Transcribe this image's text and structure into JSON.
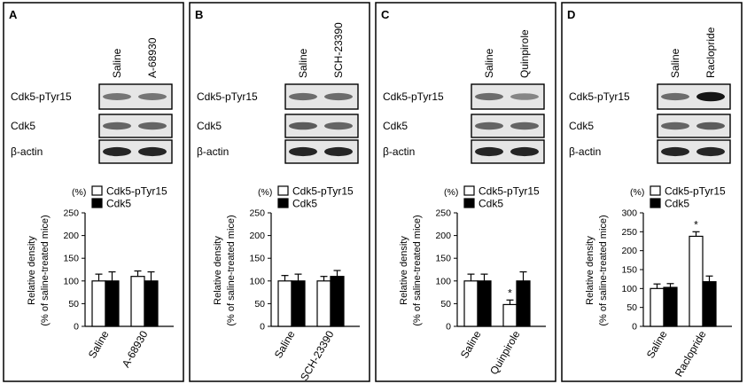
{
  "common": {
    "percent_label": "(%)",
    "ylabel_line1": "Relative density",
    "ylabel_line2": "(% of saline-treated mice)",
    "blot_rows": [
      "Cdk5-pTyr15",
      "Cdk5",
      "β-actin"
    ],
    "legend": [
      "Cdk5-pTyr15",
      "Cdk5"
    ],
    "colors": {
      "open_bar": "#ffffff",
      "filled_bar": "#000000",
      "panel_border": "#000000"
    }
  },
  "chart_data": [
    {
      "panel": "A",
      "type": "bar",
      "categories": [
        "Saline",
        "A-68930"
      ],
      "lane_labels": [
        "Saline",
        "A-68930"
      ],
      "series": [
        {
          "name": "Cdk5-pTyr15",
          "values": [
            100,
            110
          ],
          "errors": [
            15,
            12
          ]
        },
        {
          "name": "Cdk5",
          "values": [
            100,
            100
          ],
          "errors": [
            20,
            20
          ]
        }
      ],
      "ylim": [
        0,
        250
      ],
      "yticks": [
        "0",
        "50",
        "100",
        "150",
        "200",
        "250"
      ],
      "significance": [
        null,
        null
      ]
    },
    {
      "panel": "B",
      "type": "bar",
      "categories": [
        "Saline",
        "SCH-23390"
      ],
      "lane_labels": [
        "Saline",
        "SCH-23390"
      ],
      "series": [
        {
          "name": "Cdk5-pTyr15",
          "values": [
            100,
            100
          ],
          "errors": [
            12,
            10
          ]
        },
        {
          "name": "Cdk5",
          "values": [
            100,
            110
          ],
          "errors": [
            15,
            13
          ]
        }
      ],
      "ylim": [
        0,
        250
      ],
      "yticks": [
        "0",
        "50",
        "100",
        "150",
        "200",
        "250"
      ],
      "significance": [
        null,
        null
      ]
    },
    {
      "panel": "C",
      "type": "bar",
      "categories": [
        "Saline",
        "Quinpirole"
      ],
      "lane_labels": [
        "Saline",
        "Quinpirole"
      ],
      "series": [
        {
          "name": "Cdk5-pTyr15",
          "values": [
            100,
            48
          ],
          "errors": [
            15,
            10
          ]
        },
        {
          "name": "Cdk5",
          "values": [
            100,
            100
          ],
          "errors": [
            15,
            20
          ]
        }
      ],
      "ylim": [
        0,
        250
      ],
      "yticks": [
        "0",
        "50",
        "100",
        "150",
        "200",
        "250"
      ],
      "significance": [
        null,
        "*"
      ]
    },
    {
      "panel": "D",
      "type": "bar",
      "categories": [
        "Saline",
        "Raclopride"
      ],
      "lane_labels": [
        "Saline",
        "Raclopride"
      ],
      "series": [
        {
          "name": "Cdk5-pTyr15",
          "values": [
            100,
            238
          ],
          "errors": [
            12,
            12
          ]
        },
        {
          "name": "Cdk5",
          "values": [
            103,
            118
          ],
          "errors": [
            10,
            15
          ]
        }
      ],
      "ylim": [
        0,
        300
      ],
      "yticks": [
        "0",
        "50",
        "100",
        "150",
        "200",
        "250",
        "300"
      ],
      "significance": [
        null,
        "*"
      ]
    }
  ],
  "blot_bands": [
    {
      "panel": "A",
      "rows": [
        [
          0.35,
          0.35
        ],
        [
          0.45,
          0.45
        ],
        [
          0.85,
          0.85
        ]
      ]
    },
    {
      "panel": "B",
      "rows": [
        [
          0.4,
          0.4
        ],
        [
          0.5,
          0.45
        ],
        [
          0.85,
          0.85
        ]
      ]
    },
    {
      "panel": "C",
      "rows": [
        [
          0.4,
          0.25
        ],
        [
          0.45,
          0.45
        ],
        [
          0.85,
          0.85
        ]
      ]
    },
    {
      "panel": "D",
      "rows": [
        [
          0.4,
          0.95
        ],
        [
          0.45,
          0.5
        ],
        [
          0.85,
          0.85
        ]
      ]
    }
  ]
}
